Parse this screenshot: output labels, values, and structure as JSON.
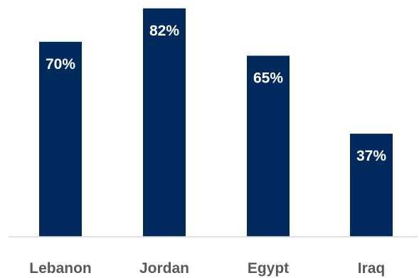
{
  "chart_data": {
    "type": "bar",
    "title": "",
    "xlabel": "",
    "ylabel": "",
    "categories": [
      "Lebanon",
      "Jordan",
      "Egypt",
      "Iraq"
    ],
    "values": [
      70,
      82,
      65,
      37
    ],
    "value_labels": [
      "70%",
      "82%",
      "65%",
      "37%"
    ],
    "ylim": [
      0,
      85
    ],
    "grid": false,
    "legend": "none"
  },
  "colors": {
    "bar": "#002A5C",
    "bar_label": "#ffffff",
    "category_label": "#595959",
    "axis": "#D9D9D9"
  }
}
